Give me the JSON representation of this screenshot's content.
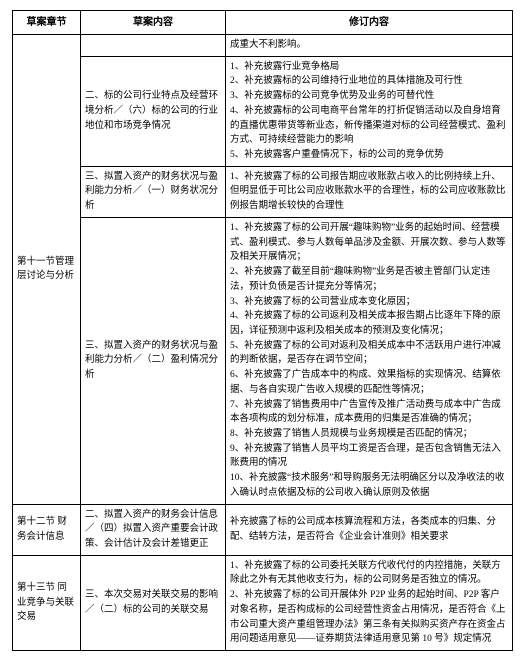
{
  "headers": {
    "c1": "草案章节",
    "c2": "草案内容",
    "c3": "修订内容"
  },
  "rows": [
    {
      "c1": "",
      "c2": "",
      "c3": "成重大不利影响。"
    },
    {
      "c1_span": "第十一节管理层讨论与分析",
      "c2": "二、标的公司行业特点及经营环境分析／（六）标的公司的行业地位和市场竞争情况",
      "c3": "1、补充披露行业竞争格局\n2、补充披露标的公司维持行业地位的具体措施及可行性\n3、补充披露标的公司竞争优势及业务的可替代性\n4、补充披露标的公司电商平台常年的打折促销活动以及自身培育的直播优惠带货等新业态，新传播渠道对标的公司经营模式、盈利方式、可持续经营能力的影响\n5、补充披露客户重叠情况下，标的公司的竞争优势"
    },
    {
      "c2": "三、拟置入资产的财务状况与盈利能力分析／（一）财务状况分析",
      "c3": "1、补充披露了标的公司报告期应收账款占收入的比例持续上升、但明显低于可比公司应收账款水平的合理性，标的公司应收账款比例报告期增长较快的合理性"
    },
    {
      "c2": "三、拟置入资产的财务状况与盈利能力分析／（二）盈利情况分析",
      "c3": "1、补充披露了标的公司开展“趣味购物”业务的起始时间、经营模式、盈利模式、参与人数每单品涉及金额、开展次数、参与人数等及相关开展情况；\n2、补充披露了截至目前“趣味购物”业务是否被主管部门认定违法，预计负债是否计提充分等情况；\n3、补充披露了标的公司营业成本变化原因；\n4、补充披露了标的公司返利及相关成本报告期占比逐年下降的原因，详征预测中返利及相关成本的预测及变化情况；\n5、补充披露了标的公司对返利及相关成本中不活跃用户进行冲减的判断依据，是否存在调节空间；\n6、补充披露了广告成本中的构成、效果指标的实现情况、结算依据、与各自实现广告收入规模的匹配性等情况；\n7、补充披露了销售费用中广告宣传及推广活动费与成本中广告成本各项构成的划分标准，成本费用的归集是否准确的情况；\n8、补充披露了销售人员规模与业务规模是否匹配的情况；\n9、补充披露了销售人员平均工资是否合理，是否包含销售无法入账费用的情况\n10、补充披露“技术服务”和导购服务无法明确区分以及净收法的收入确认时点依据及标的公司收入确认原则及依据"
    },
    {
      "c1": "第十二节  财务会计信息",
      "c2": "二、拟置入资产的财务会计信息／（四）拟置入资产重要会计政策、会计估计及会计差错更正",
      "c3": "补充披露了标的公司成本核算流程和方法，各类成本的归集、分配、结转方法，是否符合《企业会计准则》相关要求"
    },
    {
      "c1": "第十三节  同业竞争与关联交易",
      "c2": "三、本次交易对关联交易的影响／（二）标的公司的关联交易",
      "c3": "1、补充披露了标的公司委托关联方代收代付的内控措施，关联方除此之外有无其他收支行为，标的公司财务是否独立的情况。\n2、补充披露了标的公司开展体外 P2P 业务的起始时间、P2P 客户对象名称，是否构成标的公司经营性资金占用情况，是否符合《上市公司重大资产重组管理办法》第三条有关拟购买资产存在资金占用问题适用意见——证券期货法律适用意见第 10 号》规定情况"
    }
  ]
}
